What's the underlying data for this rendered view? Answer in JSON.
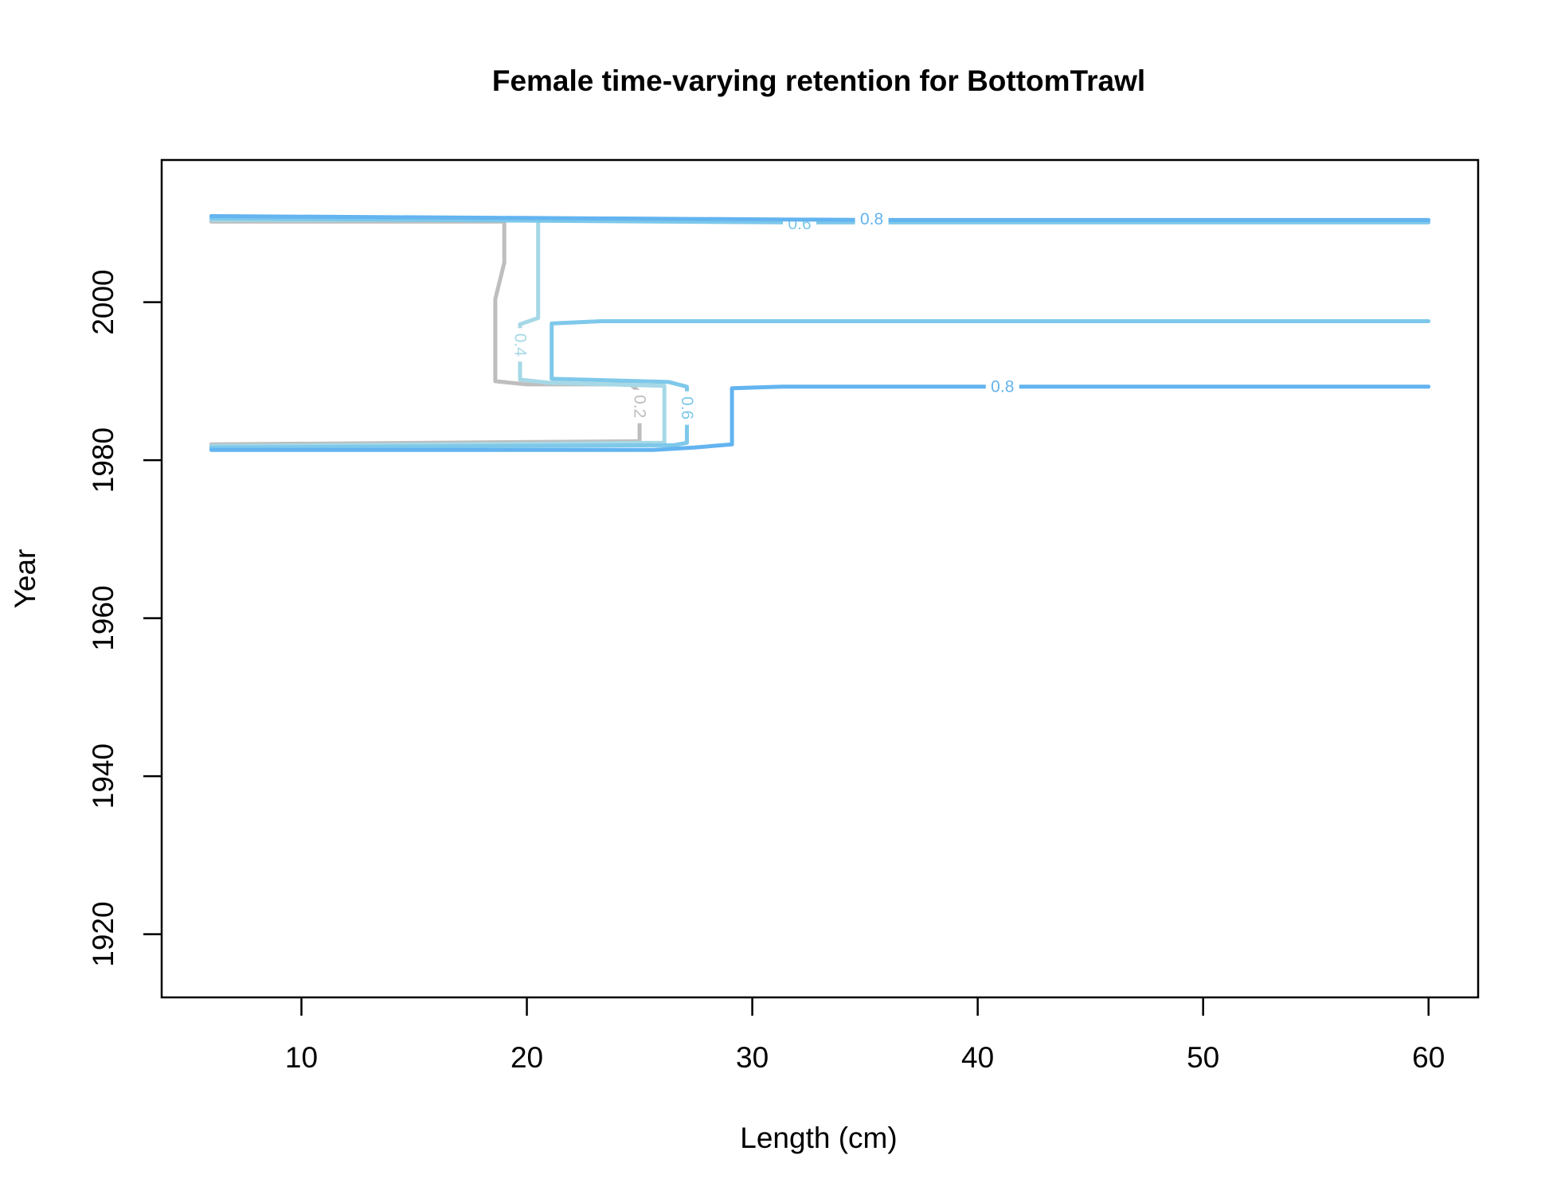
{
  "chart_data": {
    "type": "line",
    "title": "Female time-varying retention for BottomTrawl",
    "xlabel": "Length (cm)",
    "ylabel": "Year",
    "xlim": [
      3.8,
      62.2
    ],
    "ylim": [
      1912,
      2018
    ],
    "x_ticks": [
      10,
      20,
      30,
      40,
      50,
      60
    ],
    "y_ticks": [
      1920,
      1940,
      1960,
      1980,
      2000
    ],
    "x_tick_labels": [
      "10",
      "20",
      "30",
      "40",
      "50",
      "60"
    ],
    "y_tick_labels": [
      "1920",
      "1940",
      "1960",
      "1980",
      "2000"
    ],
    "grid": false,
    "legend": "none",
    "series": [
      {
        "level": "0.2",
        "color": "#bebebe",
        "points": [
          [
            6,
            2010.2
          ],
          [
            19,
            2010.2
          ],
          [
            19,
            2005
          ],
          [
            18.6,
            2000.4
          ],
          [
            18.6,
            1990
          ],
          [
            20,
            1989.6
          ],
          [
            24.6,
            1989.6
          ],
          [
            25,
            1988.6
          ],
          [
            25,
            1984
          ],
          [
            25,
            1982.4
          ],
          [
            6,
            1982
          ]
        ],
        "labels": [
          {
            "text": "0.2",
            "x": 25,
            "y": 1986.8,
            "angle": 90
          }
        ]
      },
      {
        "level": "0.4",
        "color": "#a6d8e6",
        "points": [
          [
            6,
            2010.4
          ],
          [
            20.5,
            2010.4
          ],
          [
            20.5,
            2005
          ],
          [
            20.5,
            1998
          ],
          [
            19.7,
            1997.2
          ],
          [
            19.7,
            1992
          ],
          [
            19.7,
            1990.2
          ],
          [
            21,
            1989.8
          ],
          [
            26.1,
            1989.4
          ],
          [
            26.1,
            1985
          ],
          [
            26.1,
            1982.2
          ],
          [
            6,
            1981.8
          ]
        ],
        "labels": [
          {
            "text": "0.4",
            "x": 19.7,
            "y": 1994.6,
            "angle": 90
          }
        ]
      },
      {
        "level": "0.6",
        "color": "#7ec8ea",
        "points": [
          [
            6,
            2010.6
          ],
          [
            31.5,
            2010.1
          ],
          [
            60,
            2010.1
          ]
        ],
        "labels": [
          {
            "text": "0.6",
            "x": 32.1,
            "y": 2009.9,
            "angle": 0
          }
        ]
      },
      {
        "level": "0.6",
        "color": "#7ec8ea",
        "points": [
          [
            60,
            1997.6
          ],
          [
            23.3,
            1997.6
          ],
          [
            21.1,
            1997.3
          ],
          [
            21.1,
            1990.3
          ],
          [
            26.3,
            1989.9
          ],
          [
            27.1,
            1989.3
          ],
          [
            27.1,
            1986
          ],
          [
            27.1,
            1982.2
          ],
          [
            26.5,
            1981.9
          ],
          [
            6,
            1981.6
          ]
        ],
        "labels": [
          {
            "text": "0.6",
            "x": 27.1,
            "y": 1986.6,
            "angle": 90
          }
        ]
      },
      {
        "level": "0.8",
        "color": "#63b4f0",
        "points": [
          [
            6,
            2010.9
          ],
          [
            35.3,
            2010.4
          ],
          [
            60,
            2010.4
          ]
        ],
        "labels": [
          {
            "text": "0.8",
            "x": 35.3,
            "y": 2010.5,
            "angle": 0
          }
        ]
      },
      {
        "level": "0.8",
        "color": "#63b4f0",
        "points": [
          [
            60,
            1989.3
          ],
          [
            31.3,
            1989.3
          ],
          [
            29.1,
            1989.1
          ],
          [
            29.1,
            1982
          ],
          [
            27.4,
            1981.6
          ],
          [
            25.6,
            1981.3
          ],
          [
            6,
            1981.3
          ]
        ],
        "labels": [
          {
            "text": "0.8",
            "x": 41.1,
            "y": 1989.3,
            "angle": 0
          }
        ]
      }
    ]
  }
}
